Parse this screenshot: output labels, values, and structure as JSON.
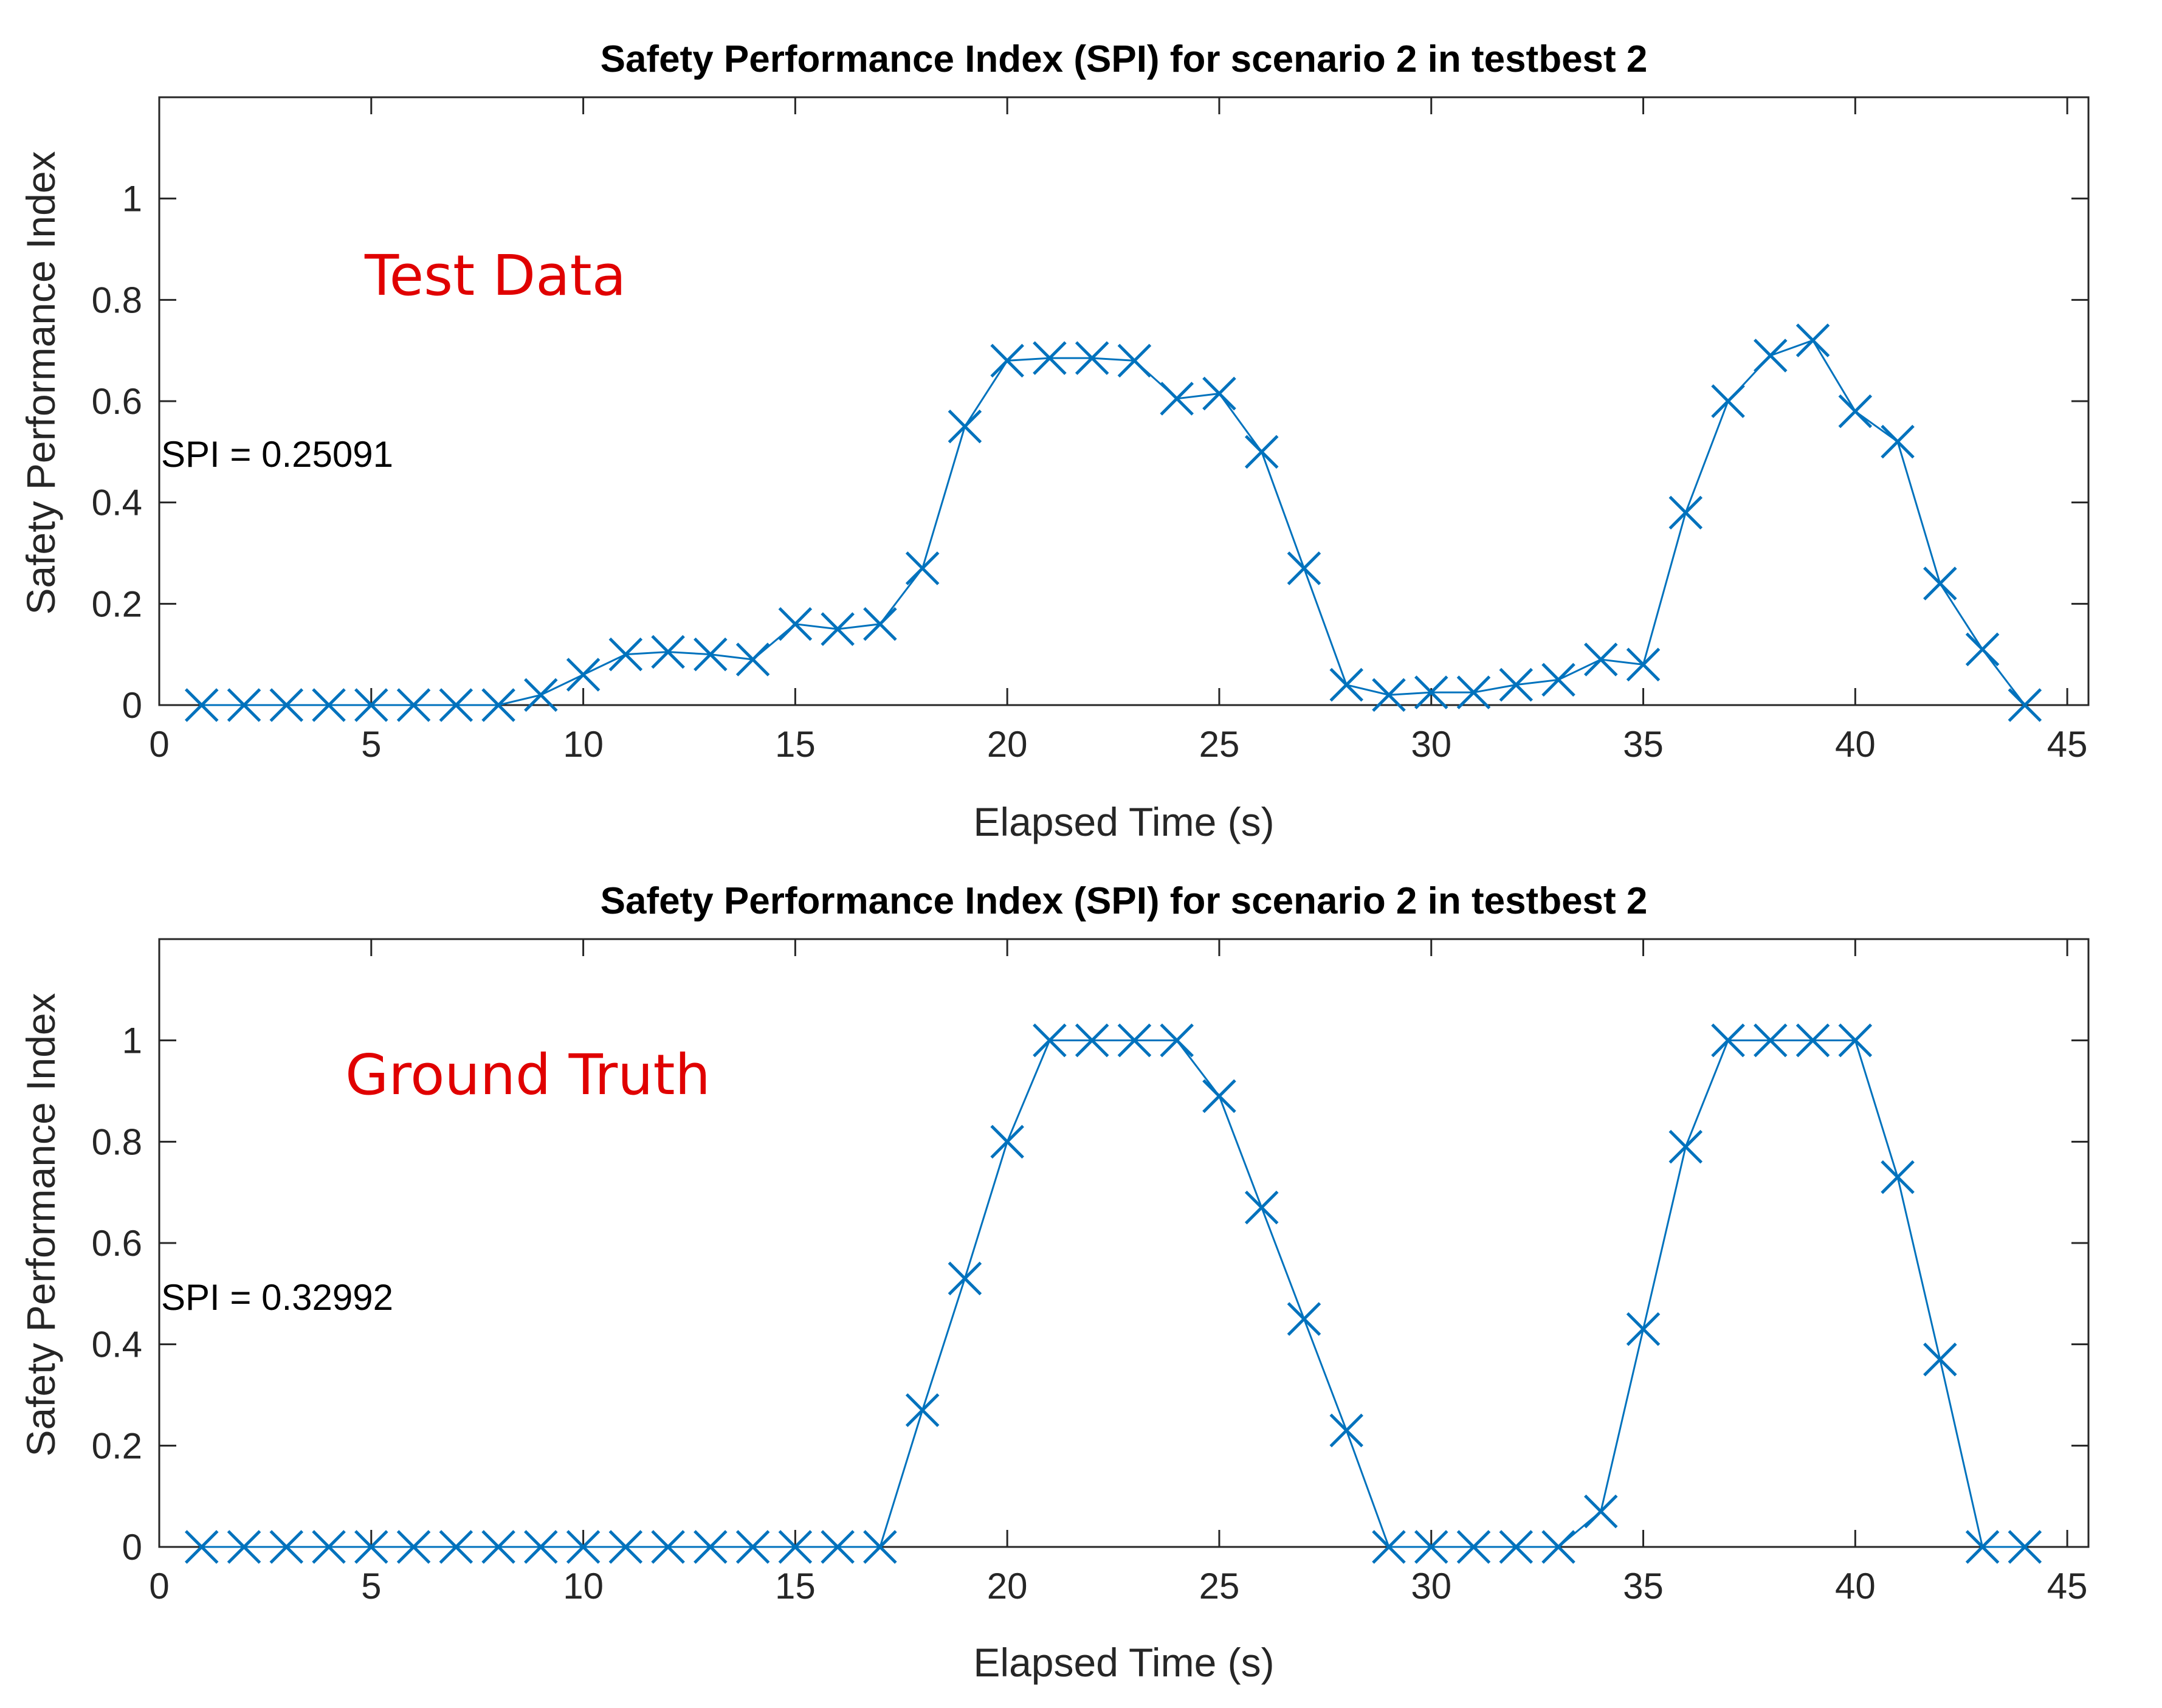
{
  "chart_data": [
    {
      "type": "line",
      "title": "Safety Performance Index (SPI) for scenario 2 in testbest 2",
      "xlabel": "Elapsed Time (s)",
      "ylabel": "Safety Performance Index",
      "xlim": [
        0,
        45.5
      ],
      "ylim": [
        0,
        1.2
      ],
      "xticks": [
        0,
        5,
        10,
        15,
        20,
        25,
        30,
        35,
        40,
        45
      ],
      "yticks": [
        0,
        0.2,
        0.4,
        0.6,
        0.8,
        1
      ],
      "ytick_labels": [
        "0",
        "0.2",
        "0.4",
        "0.6",
        "0.8",
        "1"
      ],
      "marker": "x",
      "series_color": "#0072BD",
      "overlay_label": "Test Data",
      "overlay_color": "#E00000",
      "annotation": "SPI = 0.25091",
      "series": [
        {
          "name": "SPI",
          "x": [
            1,
            2,
            3,
            4,
            5,
            6,
            7,
            8,
            9,
            10,
            11,
            12,
            13,
            14,
            15,
            16,
            17,
            18,
            19,
            20,
            21,
            22,
            23,
            24,
            25,
            26,
            27,
            28,
            29,
            30,
            31,
            32,
            33,
            34,
            35,
            36,
            37,
            38,
            39,
            40,
            41,
            42,
            43,
            44
          ],
          "values": [
            0,
            0,
            0,
            0,
            0,
            0,
            0,
            0,
            0.02,
            0.06,
            0.1,
            0.105,
            0.1,
            0.09,
            0.16,
            0.15,
            0.16,
            0.27,
            0.55,
            0.68,
            0.685,
            0.685,
            0.68,
            0.605,
            0.615,
            0.5,
            0.27,
            0.04,
            0.02,
            0.025,
            0.025,
            0.04,
            0.05,
            0.09,
            0.08,
            0.38,
            0.6,
            0.69,
            0.72,
            0.58,
            0.52,
            0.24,
            0.11,
            0
          ]
        }
      ]
    },
    {
      "type": "line",
      "title": "Safety Performance Index (SPI) for scenario 2 in testbest 2",
      "xlabel": "Elapsed Time (s)",
      "ylabel": "Safety Performance Index",
      "xlim": [
        0,
        45.5
      ],
      "ylim": [
        0,
        1.2
      ],
      "xticks": [
        0,
        5,
        10,
        15,
        20,
        25,
        30,
        35,
        40,
        45
      ],
      "yticks": [
        0,
        0.2,
        0.4,
        0.6,
        0.8,
        1
      ],
      "ytick_labels": [
        "0",
        "0.2",
        "0.4",
        "0.6",
        "0.8",
        "1"
      ],
      "marker": "x",
      "series_color": "#0072BD",
      "overlay_label": "Ground Truth",
      "overlay_color": "#E00000",
      "annotation": "SPI = 0.32992",
      "series": [
        {
          "name": "SPI",
          "x": [
            1,
            2,
            3,
            4,
            5,
            6,
            7,
            8,
            9,
            10,
            11,
            12,
            13,
            14,
            15,
            16,
            17,
            18,
            19,
            20,
            21,
            22,
            23,
            24,
            25,
            26,
            27,
            28,
            29,
            30,
            31,
            32,
            33,
            34,
            35,
            36,
            37,
            38,
            39,
            40,
            41,
            42,
            43,
            44
          ],
          "values": [
            0,
            0,
            0,
            0,
            0,
            0,
            0,
            0,
            0,
            0,
            0,
            0,
            0,
            0,
            0,
            0,
            0,
            0.27,
            0.53,
            0.8,
            1,
            1,
            1,
            1,
            0.89,
            0.67,
            0.45,
            0.23,
            0,
            0,
            0,
            0,
            0,
            0.07,
            0.43,
            0.79,
            1,
            1,
            1,
            1,
            0.73,
            0.37,
            0,
            0
          ]
        }
      ]
    }
  ]
}
